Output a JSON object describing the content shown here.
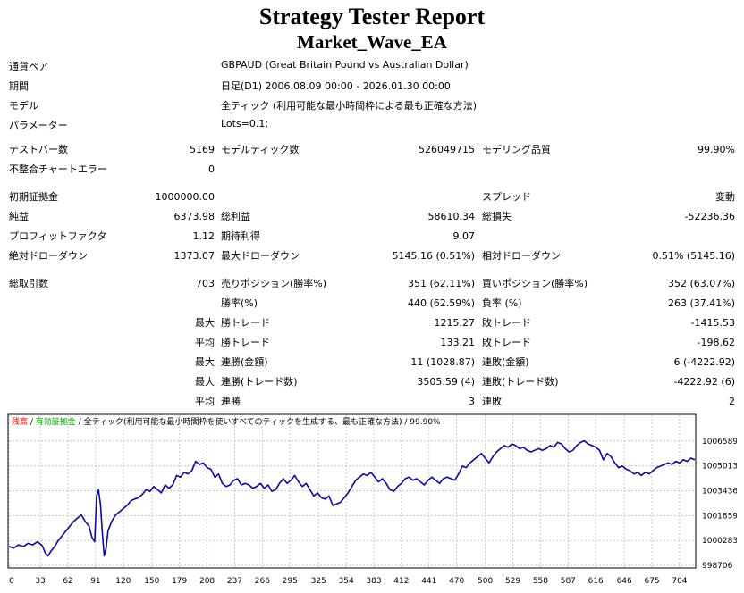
{
  "title": "Strategy Tester Report",
  "subtitle": "Market_Wave_EA",
  "info": [
    {
      "label": "通貨ペア",
      "value": "GBPAUD (Great Britain Pound vs Australian Dollar)"
    },
    {
      "label": "期間",
      "value": "日足(D1) 2006.08.09 00:00 - 2026.01.30 00:00"
    },
    {
      "label": "モデル",
      "value": "全ティック (利用可能な最小時間枠による最も正確な方法)"
    },
    {
      "label": "パラメーター",
      "value": "Lots=0.1;"
    }
  ],
  "stats": {
    "bars_label": "テストバー数",
    "bars": "5169",
    "ticks_label": "モデルティック数",
    "ticks": "526049715",
    "quality_label": "モデリング品質",
    "quality": "99.90%",
    "mismatch_label": "不整合チャートエラー",
    "mismatch": "0",
    "deposit_label": "初期証拠金",
    "deposit": "1000000.00",
    "spread_label": "スプレッド",
    "spread": "変動",
    "net_label": "純益",
    "net": "6373.98",
    "gross_profit_label": "総利益",
    "gross_profit": "58610.34",
    "gross_loss_label": "総損失",
    "gross_loss": "-52236.36",
    "pf_label": "プロフィットファクタ",
    "pf": "1.12",
    "expected_label": "期待利得",
    "expected": "9.07",
    "abs_dd_label": "絶対ドローダウン",
    "abs_dd": "1373.07",
    "max_dd_label": "最大ドローダウン",
    "max_dd": "5145.16 (0.51%)",
    "rel_dd_label": "相対ドローダウン",
    "rel_dd": "0.51% (5145.16)",
    "total_trades_label": "総取引数",
    "total_trades": "703",
    "short_label": "売りポジション(勝率%)",
    "short": "351 (62.11%)",
    "long_label": "買いポジション(勝率%)",
    "long": "352 (63.07%)",
    "win_label": "勝率(%)",
    "win": "440 (62.59%)",
    "loss_label": "負率 (%)",
    "loss": "263 (37.41%)",
    "largest_label": "最大",
    "largest_win_label": "勝トレード",
    "largest_win": "1215.27",
    "largest_loss_label": "敗トレード",
    "largest_loss": "-1415.53",
    "average_label": "平均",
    "avg_win_label": "勝トレード",
    "avg_win": "133.21",
    "avg_loss_label": "敗トレード",
    "avg_loss": "-198.62",
    "max1_label": "最大",
    "consec_wins_money_label": "連勝(金額)",
    "consec_wins_money": "11 (1028.87)",
    "consec_losses_money_label": "連敗(金額)",
    "consec_losses_money": "6 (-4222.92)",
    "max2_label": "最大",
    "consec_profit_label": "連勝(トレード数)",
    "consec_profit": "3505.59 (4)",
    "consec_loss_label": "連敗(トレード数)",
    "consec_loss": "-4222.92 (6)",
    "avg2_label": "平均",
    "avg_consec_wins_label": "連勝",
    "avg_consec_wins": "3",
    "avg_consec_losses_label": "連敗",
    "avg_consec_losses": "2"
  },
  "chart_data": {
    "type": "line",
    "legend": {
      "balance": "残高",
      "sep1": " / ",
      "equity": "有効証拠金",
      "sep2": " / ",
      "model": "全ティック(利用可能な最小時間枠を使いすべてのティックを生成する、最も正確な方法)",
      "sep3": " / ",
      "quality": "99.90%"
    },
    "colors": {
      "line": "#0a0aa0",
      "balance_text": "#ff0000",
      "equity_text": "#00a000",
      "grid": "#c8c8c8"
    },
    "xlim": [
      0,
      720
    ],
    "ylim": [
      998706,
      1007200
    ],
    "x_ticks": [
      "0",
      "33",
      "62",
      "91",
      "120",
      "150",
      "179",
      "208",
      "237",
      "266",
      "295",
      "325",
      "354",
      "383",
      "412",
      "441",
      "470",
      "500",
      "529",
      "558",
      "587",
      "616",
      "646",
      "675",
      "704"
    ],
    "y_ticks": [
      "1006589",
      "1005013",
      "1003436",
      "1001859",
      "1000283",
      "998706"
    ],
    "points": [
      [
        0,
        999900
      ],
      [
        5,
        999800
      ],
      [
        10,
        1000000
      ],
      [
        15,
        999900
      ],
      [
        20,
        1000100
      ],
      [
        25,
        1000000
      ],
      [
        30,
        1000200
      ],
      [
        35,
        999950
      ],
      [
        38,
        999500
      ],
      [
        41,
        999300
      ],
      [
        44,
        999600
      ],
      [
        48,
        999900
      ],
      [
        52,
        1000300
      ],
      [
        56,
        1000600
      ],
      [
        60,
        1000900
      ],
      [
        64,
        1001200
      ],
      [
        68,
        1001500
      ],
      [
        72,
        1001700
      ],
      [
        76,
        1001900
      ],
      [
        80,
        1001500
      ],
      [
        84,
        1001200
      ],
      [
        87,
        1000500
      ],
      [
        90,
        1000200
      ],
      [
        92,
        1003100
      ],
      [
        94,
        1003500
      ],
      [
        96,
        1002600
      ],
      [
        98,
        1000800
      ],
      [
        100,
        999300
      ],
      [
        102,
        999800
      ],
      [
        104,
        1000900
      ],
      [
        108,
        1001500
      ],
      [
        112,
        1001900
      ],
      [
        116,
        1002100
      ],
      [
        120,
        1002300
      ],
      [
        124,
        1002500
      ],
      [
        128,
        1002800
      ],
      [
        132,
        1002900
      ],
      [
        136,
        1003000
      ],
      [
        140,
        1003200
      ],
      [
        144,
        1003500
      ],
      [
        148,
        1003400
      ],
      [
        152,
        1003700
      ],
      [
        156,
        1003500
      ],
      [
        160,
        1003300
      ],
      [
        164,
        1003800
      ],
      [
        168,
        1003600
      ],
      [
        172,
        1003800
      ],
      [
        176,
        1004400
      ],
      [
        180,
        1004300
      ],
      [
        184,
        1004600
      ],
      [
        188,
        1004500
      ],
      [
        192,
        1004700
      ],
      [
        196,
        1005300
      ],
      [
        200,
        1005100
      ],
      [
        204,
        1005200
      ],
      [
        208,
        1004900
      ],
      [
        212,
        1004800
      ],
      [
        216,
        1004300
      ],
      [
        220,
        1004500
      ],
      [
        224,
        1003900
      ],
      [
        228,
        1003700
      ],
      [
        232,
        1003800
      ],
      [
        236,
        1004100
      ],
      [
        240,
        1004200
      ],
      [
        244,
        1003800
      ],
      [
        248,
        1003900
      ],
      [
        252,
        1003800
      ],
      [
        256,
        1003600
      ],
      [
        260,
        1003700
      ],
      [
        264,
        1003900
      ],
      [
        268,
        1003600
      ],
      [
        272,
        1003800
      ],
      [
        276,
        1003400
      ],
      [
        280,
        1003500
      ],
      [
        284,
        1003900
      ],
      [
        288,
        1004200
      ],
      [
        292,
        1003900
      ],
      [
        296,
        1004100
      ],
      [
        300,
        1004400
      ],
      [
        304,
        1004000
      ],
      [
        308,
        1003700
      ],
      [
        312,
        1003900
      ],
      [
        316,
        1003500
      ],
      [
        320,
        1003100
      ],
      [
        324,
        1003300
      ],
      [
        328,
        1003000
      ],
      [
        332,
        1002900
      ],
      [
        336,
        1003100
      ],
      [
        340,
        1002500
      ],
      [
        344,
        1002600
      ],
      [
        348,
        1002700
      ],
      [
        352,
        1003000
      ],
      [
        356,
        1003300
      ],
      [
        360,
        1003700
      ],
      [
        364,
        1004100
      ],
      [
        368,
        1004300
      ],
      [
        372,
        1004500
      ],
      [
        376,
        1004400
      ],
      [
        380,
        1004600
      ],
      [
        384,
        1004300
      ],
      [
        388,
        1004000
      ],
      [
        392,
        1004200
      ],
      [
        396,
        1003900
      ],
      [
        400,
        1003500
      ],
      [
        404,
        1003400
      ],
      [
        408,
        1003700
      ],
      [
        412,
        1003900
      ],
      [
        416,
        1004200
      ],
      [
        420,
        1004300
      ],
      [
        424,
        1004100
      ],
      [
        428,
        1004200
      ],
      [
        432,
        1004000
      ],
      [
        436,
        1003800
      ],
      [
        440,
        1004100
      ],
      [
        444,
        1004300
      ],
      [
        448,
        1004100
      ],
      [
        452,
        1003900
      ],
      [
        456,
        1004200
      ],
      [
        460,
        1004300
      ],
      [
        464,
        1004200
      ],
      [
        468,
        1004100
      ],
      [
        472,
        1004500
      ],
      [
        476,
        1005000
      ],
      [
        480,
        1004900
      ],
      [
        484,
        1005200
      ],
      [
        488,
        1005400
      ],
      [
        492,
        1005600
      ],
      [
        496,
        1005800
      ],
      [
        500,
        1005500
      ],
      [
        504,
        1005200
      ],
      [
        508,
        1005600
      ],
      [
        512,
        1005900
      ],
      [
        516,
        1006100
      ],
      [
        520,
        1006300
      ],
      [
        524,
        1006200
      ],
      [
        528,
        1006400
      ],
      [
        532,
        1006300
      ],
      [
        536,
        1006100
      ],
      [
        540,
        1006200
      ],
      [
        544,
        1006000
      ],
      [
        548,
        1005900
      ],
      [
        552,
        1006000
      ],
      [
        556,
        1006100
      ],
      [
        560,
        1006000
      ],
      [
        564,
        1006100
      ],
      [
        568,
        1006300
      ],
      [
        572,
        1006200
      ],
      [
        576,
        1006500
      ],
      [
        580,
        1006400
      ],
      [
        584,
        1006100
      ],
      [
        588,
        1005900
      ],
      [
        592,
        1006000
      ],
      [
        596,
        1006300
      ],
      [
        600,
        1006500
      ],
      [
        604,
        1006600
      ],
      [
        608,
        1006400
      ],
      [
        612,
        1006300
      ],
      [
        616,
        1006200
      ],
      [
        620,
        1006000
      ],
      [
        624,
        1005400
      ],
      [
        628,
        1005800
      ],
      [
        632,
        1005600
      ],
      [
        636,
        1005200
      ],
      [
        640,
        1004900
      ],
      [
        644,
        1005000
      ],
      [
        648,
        1004800
      ],
      [
        652,
        1004700
      ],
      [
        656,
        1004500
      ],
      [
        660,
        1004600
      ],
      [
        664,
        1004400
      ],
      [
        668,
        1004600
      ],
      [
        672,
        1004500
      ],
      [
        676,
        1004700
      ],
      [
        680,
        1004900
      ],
      [
        684,
        1005000
      ],
      [
        688,
        1005100
      ],
      [
        692,
        1005200
      ],
      [
        696,
        1005100
      ],
      [
        700,
        1005300
      ],
      [
        704,
        1005200
      ],
      [
        708,
        1005400
      ],
      [
        712,
        1005300
      ],
      [
        716,
        1005500
      ],
      [
        720,
        1005400
      ]
    ]
  }
}
